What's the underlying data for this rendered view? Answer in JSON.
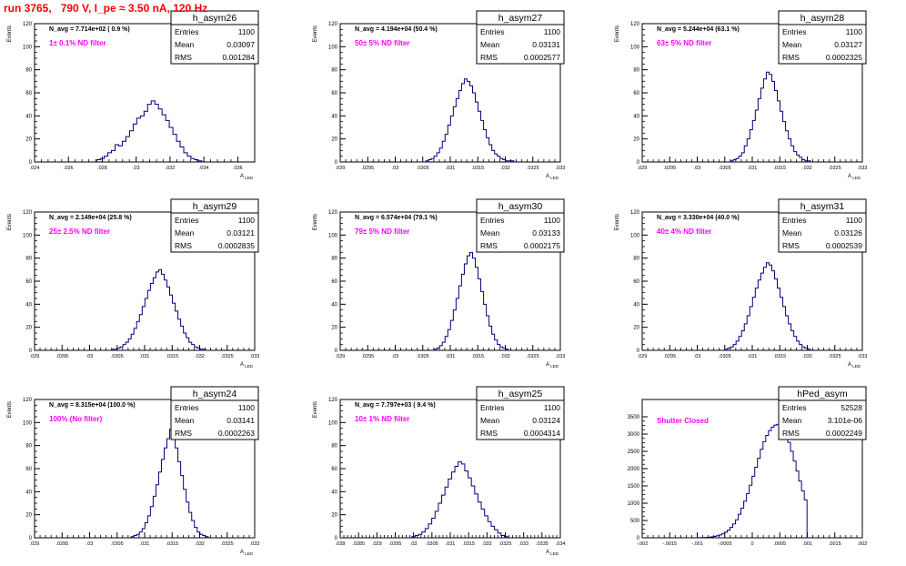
{
  "page_title": "run 3765,   790 V, I_pe ≈ 3.50 nA, 120 Hz",
  "stat_labels": {
    "entries": "Entries",
    "mean": "Mean",
    "rms": "RMS"
  },
  "colors": {
    "title": "#ff0000",
    "histogram": "#000080",
    "annotation": "#ff00ff",
    "axes": "#000000"
  },
  "chart_data": [
    {
      "type": "histogram",
      "name": "h_asym26",
      "ylabel": "Events",
      "xlabel": "A_LED",
      "xlim": [
        0.024,
        0.037
      ],
      "ylim": [
        0,
        120
      ],
      "xticks": [
        0.024,
        0.026,
        0.028,
        0.03,
        0.032,
        0.034,
        0.036
      ],
      "yticks": [
        0,
        20,
        40,
        60,
        80,
        100,
        120
      ],
      "entries": "1100",
      "mean": "0.03097",
      "rms": "0.001284",
      "navg": "N_avg = 7.714e+02 ( 0.9 %)",
      "filter": "1± 0.1% ND filter",
      "centers": [
        0.02779,
        0.02801,
        0.02822,
        0.02843,
        0.02865,
        0.02886,
        0.02907,
        0.02929,
        0.0295,
        0.02972,
        0.02993,
        0.03014,
        0.03036,
        0.03057,
        0.03078,
        0.031,
        0.03121,
        0.03142,
        0.03164,
        0.03185,
        0.03206,
        0.03228,
        0.03249,
        0.0327,
        0.03292,
        0.03313,
        0.03334,
        0.03356,
        0.03377
      ],
      "values": [
        2,
        3,
        5,
        8,
        10,
        15,
        14,
        18,
        22,
        27,
        33,
        38,
        40,
        44,
        50,
        53,
        50,
        46,
        41,
        36,
        30,
        24,
        18,
        13,
        8,
        5,
        3,
        2,
        1
      ]
    },
    {
      "type": "histogram",
      "name": "h_asym27",
      "ylabel": "Events",
      "xlabel": "A_LED",
      "xlim": [
        0.029,
        0.033
      ],
      "ylim": [
        0,
        120
      ],
      "xticks": [
        0.029,
        0.0295,
        0.03,
        0.0305,
        0.031,
        0.0315,
        0.032,
        0.0325,
        0.033
      ],
      "yticks": [
        0,
        20,
        40,
        60,
        80,
        100,
        120
      ],
      "entries": "1100",
      "mean": "0.03131",
      "rms": "0.0002577",
      "navg": "N_avg = 4.194e+04 (50.4 %)",
      "filter": "50± 5% ND filter",
      "centers": [
        0.03058,
        0.03063,
        0.03068,
        0.03073,
        0.03078,
        0.03083,
        0.03088,
        0.03093,
        0.03098,
        0.03103,
        0.03108,
        0.03113,
        0.03118,
        0.03123,
        0.03128,
        0.03133,
        0.03138,
        0.03143,
        0.03148,
        0.03153,
        0.03158,
        0.03163,
        0.03168,
        0.03173,
        0.03178,
        0.03183,
        0.03188,
        0.03193,
        0.03198,
        0.03203,
        0.03208,
        0.03213
      ],
      "values": [
        1,
        2,
        3,
        5,
        8,
        12,
        18,
        24,
        32,
        40,
        48,
        55,
        62,
        68,
        72,
        70,
        66,
        60,
        52,
        44,
        36,
        28,
        21,
        15,
        10,
        7,
        5,
        3,
        2,
        1,
        1,
        1
      ]
    },
    {
      "type": "histogram",
      "name": "h_asym28",
      "ylabel": "Events",
      "xlabel": "A_LED",
      "xlim": [
        0.029,
        0.033
      ],
      "ylim": [
        0,
        120
      ],
      "xticks": [
        0.029,
        0.0295,
        0.03,
        0.0305,
        0.031,
        0.0315,
        0.032,
        0.0325,
        0.033
      ],
      "yticks": [
        0,
        20,
        40,
        60,
        80,
        100,
        120
      ],
      "entries": "1100",
      "mean": "0.03127",
      "rms": "0.0002325",
      "navg": "N_avg = 5.244e+04 (63.1 %)",
      "filter": "63± 5% ND filter",
      "centers": [
        0.03063,
        0.03068,
        0.03073,
        0.03078,
        0.03083,
        0.03088,
        0.03093,
        0.03098,
        0.03103,
        0.03108,
        0.03113,
        0.03118,
        0.03123,
        0.03128,
        0.03133,
        0.03138,
        0.03143,
        0.03148,
        0.03153,
        0.03158,
        0.03163,
        0.03168,
        0.03173,
        0.03178,
        0.03183,
        0.03188,
        0.03193,
        0.03198,
        0.03203
      ],
      "values": [
        1,
        2,
        3,
        5,
        8,
        14,
        20,
        28,
        36,
        45,
        55,
        64,
        72,
        78,
        76,
        70,
        62,
        53,
        44,
        35,
        27,
        20,
        14,
        9,
        6,
        4,
        2,
        1,
        1
      ]
    },
    {
      "type": "histogram",
      "name": "h_asym29",
      "ylabel": "Events",
      "xlabel": "A_LED",
      "xlim": [
        0.029,
        0.033
      ],
      "ylim": [
        0,
        120
      ],
      "xticks": [
        0.029,
        0.0295,
        0.03,
        0.0305,
        0.031,
        0.0315,
        0.032,
        0.0325,
        0.033
      ],
      "yticks": [
        0,
        20,
        40,
        60,
        80,
        100,
        120
      ],
      "entries": "1100",
      "mean": "0.03121",
      "rms": "0.0002835",
      "navg": "N_avg = 2.149e+04 (25.8 %)",
      "filter": "25± 2.5% ND filter",
      "centers": [
        0.03043,
        0.03048,
        0.03053,
        0.03058,
        0.03063,
        0.03068,
        0.03073,
        0.03078,
        0.03083,
        0.03088,
        0.03093,
        0.03098,
        0.03103,
        0.03108,
        0.03113,
        0.03118,
        0.03123,
        0.03128,
        0.03133,
        0.03138,
        0.03143,
        0.03148,
        0.03153,
        0.03158,
        0.03163,
        0.03168,
        0.03173,
        0.03178,
        0.03183,
        0.03188,
        0.03193,
        0.03198,
        0.03203,
        0.03208
      ],
      "values": [
        1,
        1,
        2,
        3,
        5,
        7,
        10,
        14,
        19,
        25,
        31,
        38,
        45,
        52,
        58,
        63,
        68,
        70,
        66,
        61,
        55,
        48,
        41,
        34,
        27,
        21,
        15,
        11,
        7,
        5,
        3,
        2,
        1,
        1
      ]
    },
    {
      "type": "histogram",
      "name": "h_asym30",
      "ylabel": "Events",
      "xlabel": "A_LED",
      "xlim": [
        0.029,
        0.033
      ],
      "ylim": [
        0,
        120
      ],
      "xticks": [
        0.029,
        0.0295,
        0.03,
        0.0305,
        0.031,
        0.0315,
        0.032,
        0.0325,
        0.033
      ],
      "yticks": [
        0,
        20,
        40,
        60,
        80,
        100,
        120
      ],
      "entries": "1100",
      "mean": "0.03133",
      "rms": "0.0002175",
      "navg": "N_avg = 6.574e+04 (79.1 %)",
      "filter": "79± 5% ND filter",
      "centers": [
        0.03073,
        0.03078,
        0.03083,
        0.03088,
        0.03093,
        0.03098,
        0.03103,
        0.03108,
        0.03113,
        0.03118,
        0.03123,
        0.03128,
        0.03133,
        0.03138,
        0.03143,
        0.03148,
        0.03153,
        0.03158,
        0.03163,
        0.03168,
        0.03173,
        0.03178,
        0.03183,
        0.03188,
        0.03193,
        0.03198,
        0.03203
      ],
      "values": [
        1,
        2,
        4,
        7,
        12,
        18,
        26,
        35,
        45,
        56,
        66,
        75,
        82,
        85,
        80,
        72,
        62,
        51,
        40,
        30,
        21,
        14,
        9,
        5,
        3,
        2,
        1
      ]
    },
    {
      "type": "histogram",
      "name": "h_asym31",
      "ylabel": "Events",
      "xlabel": "A_LED",
      "xlim": [
        0.029,
        0.033
      ],
      "ylim": [
        0,
        120
      ],
      "xticks": [
        0.029,
        0.0295,
        0.03,
        0.0305,
        0.031,
        0.0315,
        0.032,
        0.0325,
        0.033
      ],
      "yticks": [
        0,
        20,
        40,
        60,
        80,
        100,
        120
      ],
      "entries": "1100",
      "mean": "0.03126",
      "rms": "0.0002539",
      "navg": "N_avg = 3.330e+04 (40.0 %)",
      "filter": "40± 4% ND filter",
      "centers": [
        0.03053,
        0.03058,
        0.03063,
        0.03068,
        0.03073,
        0.03078,
        0.03083,
        0.03088,
        0.03093,
        0.03098,
        0.03103,
        0.03108,
        0.03113,
        0.03118,
        0.03123,
        0.03128,
        0.03133,
        0.03138,
        0.03143,
        0.03148,
        0.03153,
        0.03158,
        0.03163,
        0.03168,
        0.03173,
        0.03178,
        0.03183,
        0.03188,
        0.03193,
        0.03198,
        0.03203
      ],
      "values": [
        1,
        2,
        3,
        5,
        8,
        12,
        17,
        23,
        30,
        38,
        46,
        54,
        61,
        67,
        72,
        76,
        74,
        69,
        62,
        54,
        46,
        38,
        30,
        23,
        17,
        12,
        8,
        5,
        3,
        2,
        1
      ]
    },
    {
      "type": "histogram",
      "name": "h_asym24",
      "ylabel": "Events",
      "xlabel": "A_LED",
      "xlim": [
        0.029,
        0.033
      ],
      "ylim": [
        0,
        120
      ],
      "xticks": [
        0.029,
        0.0295,
        0.03,
        0.0305,
        0.031,
        0.0315,
        0.032,
        0.0325,
        0.033
      ],
      "yticks": [
        0,
        20,
        40,
        60,
        80,
        100,
        120
      ],
      "entries": "1100",
      "mean": "0.03141",
      "rms": "0.0002263",
      "navg": "N_avg = 8.315e+04 (100.0 %)",
      "filter": "100% (No filter)",
      "centers": [
        0.03078,
        0.03083,
        0.03088,
        0.03093,
        0.03098,
        0.03103,
        0.03108,
        0.03113,
        0.03118,
        0.03123,
        0.03128,
        0.03133,
        0.03138,
        0.03143,
        0.03148,
        0.03153,
        0.03158,
        0.03163,
        0.03168,
        0.03173,
        0.03178,
        0.03183,
        0.03188,
        0.03193,
        0.03198,
        0.03203,
        0.03208,
        0.03213
      ],
      "values": [
        1,
        2,
        3,
        5,
        8,
        13,
        19,
        27,
        36,
        46,
        57,
        68,
        78,
        86,
        94,
        88,
        78,
        66,
        54,
        42,
        31,
        22,
        15,
        9,
        5,
        3,
        2,
        1
      ]
    },
    {
      "type": "histogram",
      "name": "h_asym25",
      "ylabel": "Events",
      "xlabel": "A_LED",
      "xlim": [
        0.028,
        0.034
      ],
      "ylim": [
        0,
        120
      ],
      "xticks": [
        0.028,
        0.0285,
        0.029,
        0.0295,
        0.03,
        0.0305,
        0.031,
        0.0315,
        0.032,
        0.0325,
        0.033,
        0.0335,
        0.034
      ],
      "yticks": [
        0,
        20,
        40,
        60,
        80,
        100,
        120
      ],
      "entries": "1100",
      "mean": "0.03124",
      "rms": "0.0004314",
      "navg": "N_avg = 7.797e+03 ( 9.4 %)",
      "filter": "10± 1% ND filter",
      "centers": [
        0.03,
        0.03009,
        0.03018,
        0.03027,
        0.03036,
        0.03045,
        0.03054,
        0.03063,
        0.03072,
        0.03081,
        0.0309,
        0.03099,
        0.03108,
        0.03117,
        0.03126,
        0.03135,
        0.03144,
        0.03153,
        0.03162,
        0.03171,
        0.0318,
        0.03189,
        0.03198,
        0.03207,
        0.03216,
        0.03225,
        0.03234,
        0.03243,
        0.03252
      ],
      "values": [
        1,
        2,
        3,
        5,
        8,
        12,
        17,
        23,
        30,
        37,
        44,
        51,
        57,
        62,
        66,
        64,
        58,
        52,
        45,
        38,
        31,
        25,
        19,
        14,
        10,
        7,
        4,
        2,
        1
      ]
    },
    {
      "type": "histogram",
      "name": "hPed_asym",
      "ylabel": "",
      "xlabel": "",
      "xlim": [
        -0.002,
        0.002
      ],
      "ylim": [
        0,
        4000
      ],
      "xticks": [
        -0.002,
        -0.0015,
        -0.001,
        -0.0005,
        0,
        0.0005,
        0.001,
        0.0015,
        0.002
      ],
      "yticks": [
        0,
        500,
        1000,
        1500,
        2000,
        2500,
        3000,
        3500
      ],
      "entries": "52528",
      "mean": "3.101e-06",
      "rms": "0.0002249",
      "navg": "",
      "filter": "Shutter Closed",
      "centers": [
        -0.00098,
        -0.00093,
        -0.00088,
        -0.00083,
        -0.00078,
        -0.00073,
        -0.00068,
        -0.00063,
        -0.00058,
        -0.00053,
        -0.00048,
        -0.00043,
        -0.00038,
        -0.00033,
        -0.00028,
        -0.00023,
        -0.00018,
        -0.00013,
        -8e-05,
        -3e-05,
        2e-05,
        7e-05,
        0.00012,
        0.00017,
        0.00022,
        0.00027,
        0.00032,
        0.00037,
        0.00042,
        0.00047,
        0.00052,
        0.00057,
        0.00062,
        0.00067,
        0.00072,
        0.00077,
        0.00082,
        0.00087,
        0.00092,
        0.00097
      ],
      "values": [
        3,
        5,
        8,
        12,
        18,
        27,
        40,
        58,
        82,
        115,
        160,
        220,
        300,
        400,
        520,
        680,
        860,
        1060,
        1280,
        1520,
        1780,
        2040,
        2300,
        2560,
        2780,
        2960,
        3100,
        3200,
        3260,
        3280,
        3240,
        3140,
        2980,
        2760,
        2500,
        2220,
        1930,
        1640,
        1360,
        1100
      ]
    }
  ]
}
